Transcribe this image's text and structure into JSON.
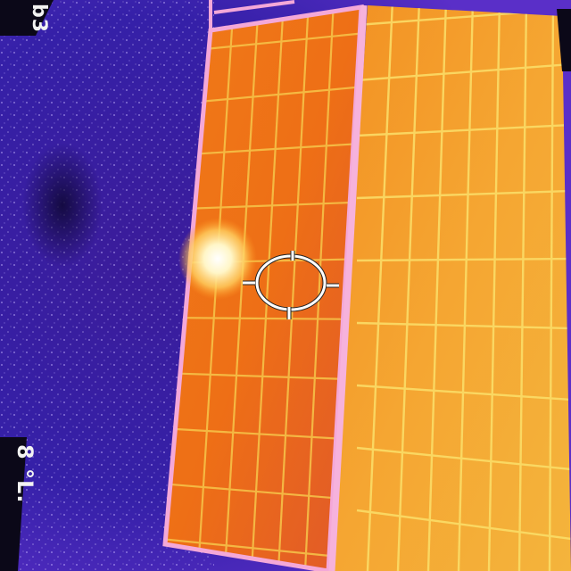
{
  "camera_overlay": {
    "top_left_text": "b3",
    "bottom_left_text": "8 °L.",
    "reticle_icon": "spot-meter-crosshair-icon"
  },
  "colors": {
    "background_cold": "#3a1fa8",
    "panel_warm": "#f08a1c",
    "panel_hot": "#f8c23a",
    "frame": "#f2a6d6",
    "hotspot": "#ffffff"
  }
}
